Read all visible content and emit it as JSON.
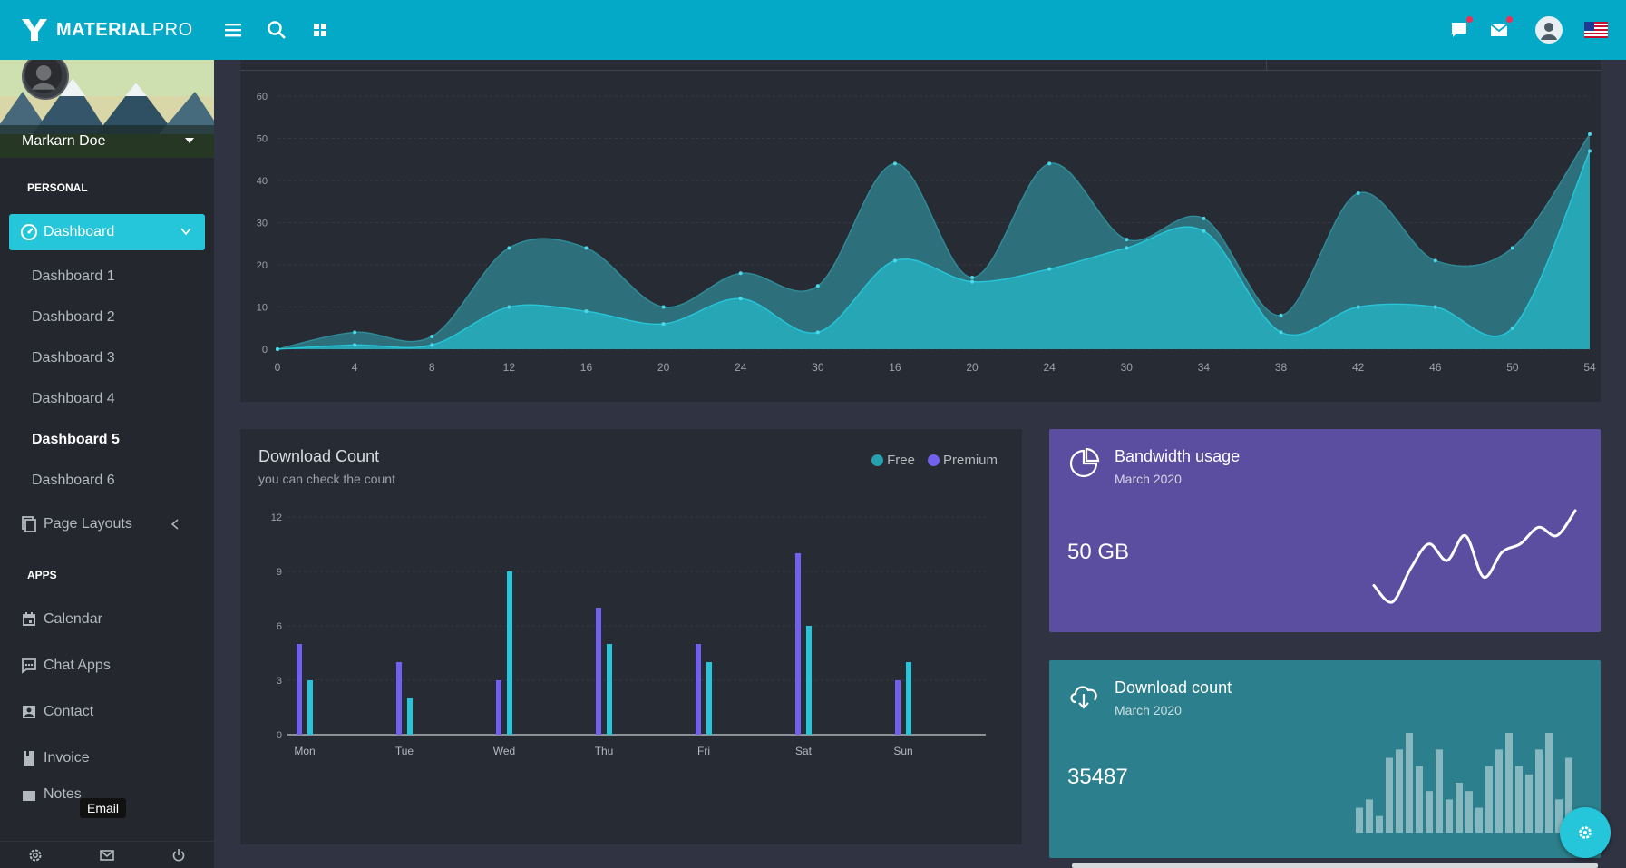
{
  "app": {
    "brand_bold": "MATERIAL",
    "brand_light": "PRO"
  },
  "user": {
    "name": "Markarn Doe"
  },
  "sidebar": {
    "personal_caption": "PERSONAL",
    "apps_caption": "APPS",
    "dashboard_label": "Dashboard",
    "sub_items": [
      "Dashboard 1",
      "Dashboard 2",
      "Dashboard 3",
      "Dashboard 4",
      "Dashboard 5",
      "Dashboard 6"
    ],
    "active_sub": "Dashboard 5",
    "page_layouts_label": "Page Layouts",
    "apps": [
      "Calendar",
      "Chat Apps",
      "Contact",
      "Invoice",
      "Notes"
    ],
    "tooltip": "Email"
  },
  "colors": {
    "accent": "#26c6da",
    "topbar": "#03a9c6",
    "premium": "#7460ee",
    "free": "#26c6da",
    "bandwidth_bg": "#5b4da0",
    "download_bg": "#2c7f8c"
  },
  "chart_data": [
    {
      "type": "area",
      "x_labels": [
        "0",
        "4",
        "8",
        "12",
        "16",
        "20",
        "24",
        "30",
        "16",
        "20",
        "24",
        "30",
        "34",
        "38",
        "42",
        "46",
        "50",
        "54"
      ],
      "y_ticks": [
        0,
        10,
        20,
        30,
        40,
        50,
        60
      ],
      "ylim": [
        0,
        60
      ],
      "grid": true,
      "series": [
        {
          "values": [
            0,
            4,
            3,
            24,
            24,
            10,
            18,
            15,
            44,
            17,
            44,
            26,
            31,
            8,
            37,
            21,
            24,
            51
          ]
        },
        {
          "values": [
            0,
            1,
            1,
            10,
            9,
            6,
            12,
            4,
            21,
            16,
            19,
            24,
            28,
            4,
            10,
            10,
            5,
            47
          ]
        }
      ]
    },
    {
      "type": "bar",
      "title": "Download Count",
      "subtitle": "you can check the count",
      "categories": [
        "Mon",
        "Tue",
        "Wed",
        "Thu",
        "Fri",
        "Sat",
        "Sun"
      ],
      "y_ticks": [
        0,
        3,
        6,
        9,
        12
      ],
      "ylim": [
        0,
        12
      ],
      "grid": true,
      "legend_position": "top-right",
      "series": [
        {
          "name": "Premium",
          "values": [
            5,
            4,
            3,
            7,
            5,
            10,
            3
          ]
        },
        {
          "name": "Free",
          "values": [
            3,
            2,
            9,
            5,
            4,
            6,
            4
          ]
        }
      ]
    },
    {
      "type": "line",
      "values": [
        3,
        1,
        5,
        8,
        6,
        9,
        4,
        7,
        8,
        10,
        9,
        12
      ]
    },
    {
      "type": "bar",
      "values": [
        3,
        4,
        2,
        9,
        10,
        12,
        8,
        5,
        10,
        4,
        6,
        5,
        3,
        8,
        10,
        12,
        8,
        7,
        10,
        12,
        4,
        9
      ]
    }
  ],
  "widgets": {
    "bandwidth": {
      "title": "Bandwidth usage",
      "subtitle": "March 2020",
      "value": "50 GB"
    },
    "downloads": {
      "title": "Download count",
      "subtitle": "March 2020",
      "value": "35487"
    }
  }
}
